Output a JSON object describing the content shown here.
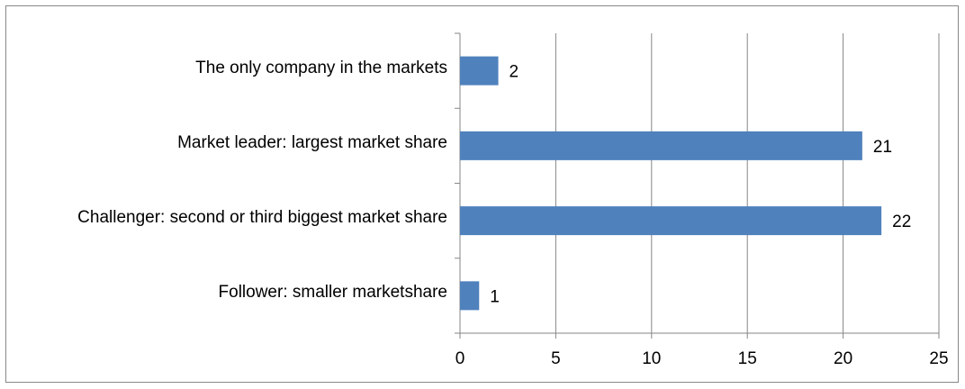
{
  "chart_data": {
    "type": "bar",
    "orientation": "horizontal",
    "categories": [
      "The only company in the markets",
      "Market leader: largest market share",
      "Challenger: second or third biggest market share",
      "Follower: smaller marketshare"
    ],
    "values": [
      2,
      21,
      22,
      1
    ],
    "color": "#4f81bd",
    "xlim": [
      0,
      25
    ],
    "xticks": [
      0,
      5,
      10,
      15,
      20,
      25
    ],
    "grid": true
  }
}
